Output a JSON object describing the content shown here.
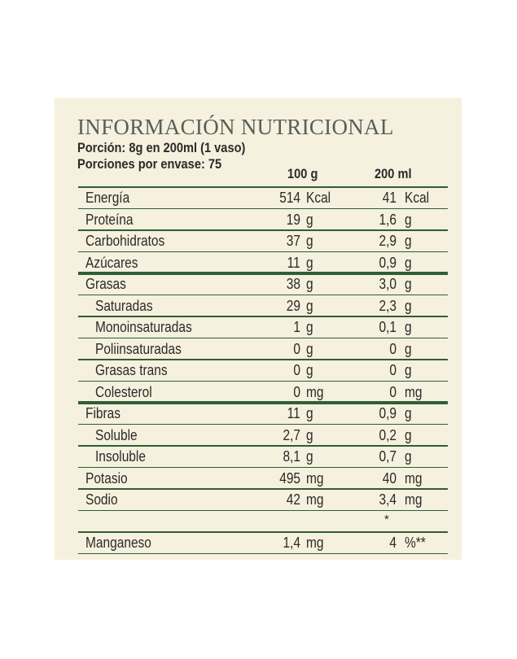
{
  "header": {
    "title": "INFORMACIÓN NUTRICIONAL",
    "serving": "Porción: 8g en 200ml (1 vaso)",
    "servings_per_package": "Porciones por envase: 75"
  },
  "table": {
    "columns": [
      "100 g",
      "200 ml"
    ],
    "rows": [
      {
        "label": "Energía",
        "indent": false,
        "v100": "514",
        "u100": "Kcal",
        "v200": "41",
        "u200": "Kcal"
      },
      {
        "label": "Proteína",
        "indent": false,
        "v100": "19",
        "u100": "g",
        "v200": "1,6",
        "u200": "g"
      },
      {
        "label": "Carbohidratos",
        "indent": false,
        "v100": "37",
        "u100": "g",
        "v200": "2,9",
        "u200": "g"
      },
      {
        "label": "Azúcares",
        "indent": false,
        "v100": "11",
        "u100": "g",
        "v200": "0,9",
        "u200": "g",
        "thick": true
      },
      {
        "label": "Grasas",
        "indent": false,
        "v100": "38",
        "u100": "g",
        "v200": "3,0",
        "u200": "g"
      },
      {
        "label": "Saturadas",
        "indent": true,
        "v100": "29",
        "u100": "g",
        "v200": "2,3",
        "u200": "g"
      },
      {
        "label": "Monoinsaturadas",
        "indent": true,
        "v100": "1",
        "u100": "g",
        "v200": "0,1",
        "u200": "g"
      },
      {
        "label": "Poliinsaturadas",
        "indent": true,
        "v100": "0",
        "u100": "g",
        "v200": "0",
        "u200": "g"
      },
      {
        "label": "Grasas trans",
        "indent": true,
        "v100": "0",
        "u100": "g",
        "v200": "0",
        "u200": "g"
      },
      {
        "label": "Colesterol",
        "indent": true,
        "v100": "0",
        "u100": "mg",
        "v200": "0",
        "u200": "mg",
        "thick": true
      },
      {
        "label": "Fibras",
        "indent": false,
        "v100": "11",
        "u100": "g",
        "v200": "0,9",
        "u200": "g"
      },
      {
        "label": "Soluble",
        "indent": true,
        "v100": "2,7",
        "u100": "g",
        "v200": "0,2",
        "u200": "g"
      },
      {
        "label": "Insoluble",
        "indent": true,
        "v100": "8,1",
        "u100": "g",
        "v200": "0,7",
        "u200": "g"
      },
      {
        "label": "Potasio",
        "indent": false,
        "v100": "495",
        "u100": "mg",
        "v200": "40",
        "u200": "mg"
      },
      {
        "label": "Sodio",
        "indent": false,
        "v100": "42",
        "u100": "mg",
        "v200": "3,4",
        "u200": "mg"
      },
      {
        "footnote_mark": "*"
      },
      {
        "label": "Manganeso",
        "indent": false,
        "v100": "1,4",
        "u100": "mg",
        "v200": "4",
        "u200": "%**"
      }
    ]
  }
}
